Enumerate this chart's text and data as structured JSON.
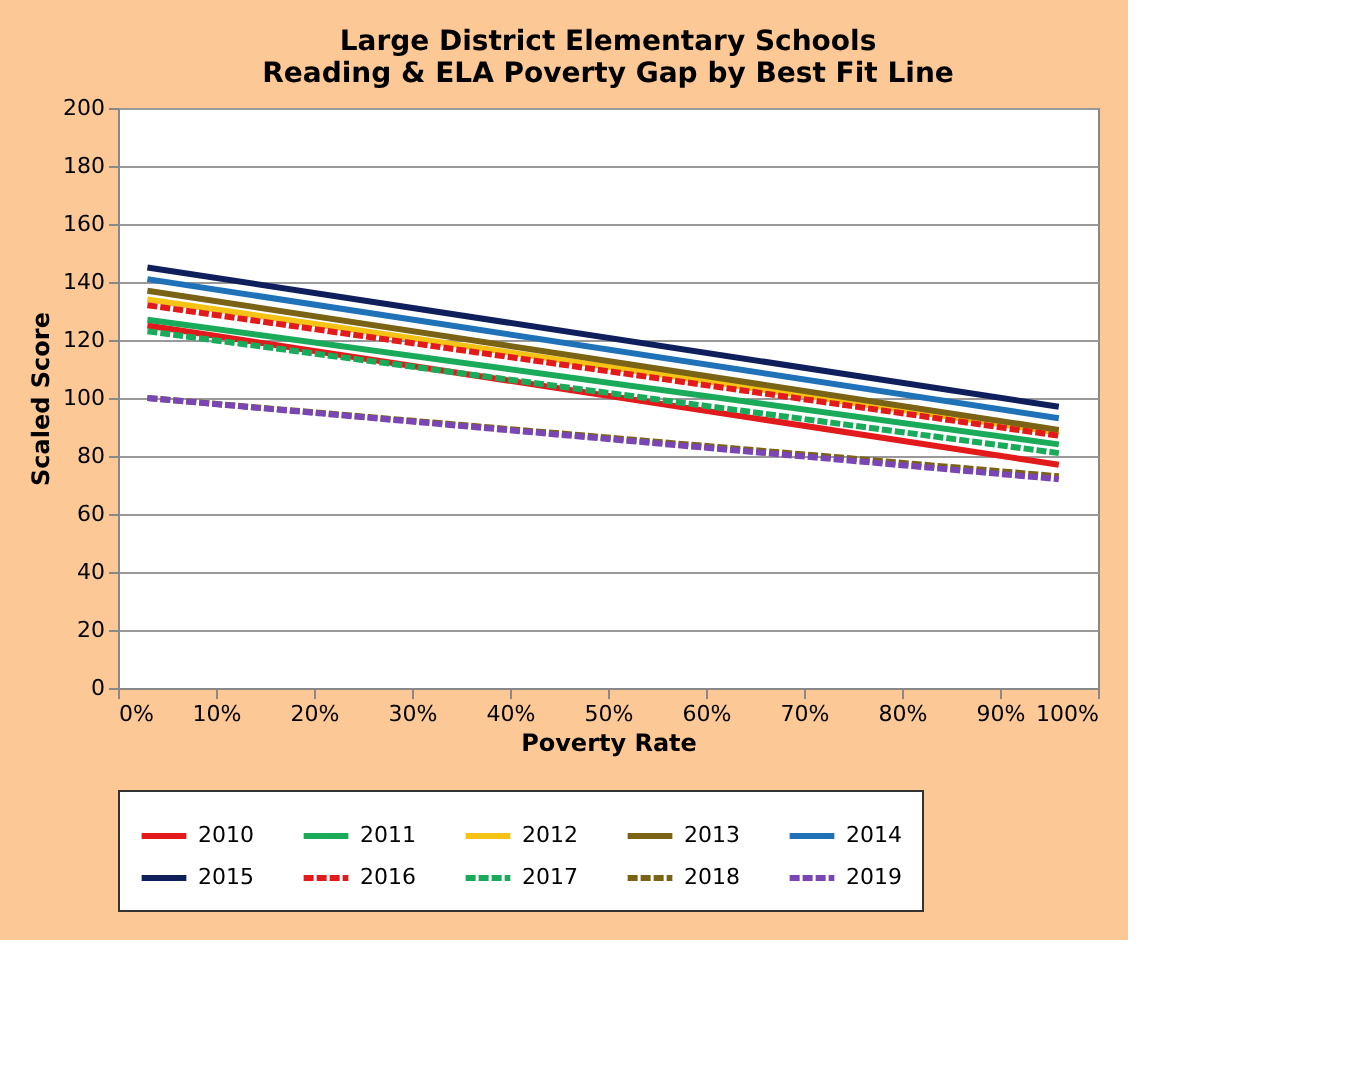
{
  "chart_data": {
    "type": "line",
    "title": "Large District Elementary Schools\nReading & ELA Poverty Gap by Best Fit Line",
    "xlabel": "Poverty Rate",
    "ylabel": "Scaled Score",
    "x": [
      3,
      96
    ],
    "xlim": [
      0,
      100
    ],
    "xticks": [
      {
        "value": 0,
        "label": "0%"
      },
      {
        "value": 10,
        "label": "10%"
      },
      {
        "value": 20,
        "label": "20%"
      },
      {
        "value": 30,
        "label": "30%"
      },
      {
        "value": 40,
        "label": "40%"
      },
      {
        "value": 50,
        "label": "50%"
      },
      {
        "value": 60,
        "label": "60%"
      },
      {
        "value": 70,
        "label": "70%"
      },
      {
        "value": 80,
        "label": "80%"
      },
      {
        "value": 90,
        "label": "90%"
      },
      {
        "value": 100,
        "label": "100%"
      }
    ],
    "ylim": [
      0,
      200
    ],
    "yticks": [
      0,
      20,
      40,
      60,
      80,
      100,
      120,
      140,
      160,
      180,
      200
    ],
    "grid": "y",
    "legend": "bottom",
    "series": [
      {
        "name": "2010",
        "color": "#e31a1c",
        "line_style": "solid",
        "values": [
          125,
          77
        ]
      },
      {
        "name": "2011",
        "color": "#1aab5a",
        "line_style": "solid",
        "values": [
          127,
          84
        ]
      },
      {
        "name": "2012",
        "color": "#f5c216",
        "line_style": "solid",
        "values": [
          134,
          88
        ]
      },
      {
        "name": "2013",
        "color": "#7a6314",
        "line_style": "solid",
        "values": [
          137,
          89
        ]
      },
      {
        "name": "2014",
        "color": "#1f72b8",
        "line_style": "solid",
        "values": [
          141,
          93
        ]
      },
      {
        "name": "2015",
        "color": "#0f1f5c",
        "line_style": "solid",
        "values": [
          145,
          97
        ]
      },
      {
        "name": "2016",
        "color": "#e31a1c",
        "line_style": "dashed",
        "values": [
          132,
          87
        ]
      },
      {
        "name": "2017",
        "color": "#1aab5a",
        "line_style": "dashed",
        "values": [
          123,
          81
        ]
      },
      {
        "name": "2018",
        "color": "#7a6314",
        "line_style": "dashed",
        "values": [
          100,
          73
        ]
      },
      {
        "name": "2019",
        "color": "#7a45b5",
        "line_style": "dashed",
        "values": [
          100,
          72
        ]
      }
    ]
  }
}
